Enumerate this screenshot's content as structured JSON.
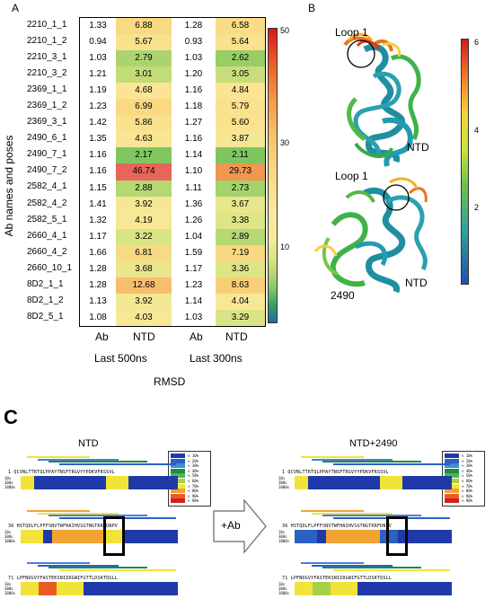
{
  "panel_a": {
    "letter": "A",
    "y_label": "Ab names and poses",
    "x_group_1": "Last 500ns",
    "x_group_2": "Last 300ns",
    "x_title": "RMSD",
    "col_headers": [
      "Ab",
      "NTD",
      "Ab",
      "NTD"
    ],
    "colorbar_ticks": [
      "50",
      "30",
      "10"
    ],
    "colorbar_range": [
      0,
      52
    ],
    "rows": [
      {
        "name": "2210_1_1",
        "v": [
          1.33,
          6.88,
          1.28,
          6.58
        ],
        "t": [
          "1.33",
          "6.88",
          "1.28",
          "6.58"
        ]
      },
      {
        "name": "2210_1_2",
        "v": [
          0.94,
          5.67,
          0.93,
          5.64
        ],
        "t": [
          "0.94",
          "5.67",
          "0.93",
          "5.64"
        ]
      },
      {
        "name": "2210_3_1",
        "v": [
          1.03,
          2.79,
          1.03,
          2.62
        ],
        "t": [
          "1.03",
          "2.79",
          "1.03",
          "2.62"
        ]
      },
      {
        "name": "2210_3_2",
        "v": [
          1.21,
          3.01,
          1.2,
          3.05
        ],
        "t": [
          "1.21",
          "3.01",
          "1.20",
          "3.05"
        ]
      },
      {
        "name": "2369_1_1",
        "v": [
          1.19,
          4.68,
          1.16,
          4.84
        ],
        "t": [
          "1.19",
          "4.68",
          "1.16",
          "4.84"
        ]
      },
      {
        "name": "2369_1_2",
        "v": [
          1.23,
          6.99,
          1.18,
          5.79
        ],
        "t": [
          "1.23",
          "6.99",
          "1.18",
          "5.79"
        ]
      },
      {
        "name": "2369_3_1",
        "v": [
          1.42,
          5.86,
          1.27,
          5.6
        ],
        "t": [
          "1.42",
          "5.86",
          "1.27",
          "5.60"
        ]
      },
      {
        "name": "2490_6_1",
        "v": [
          1.35,
          4.63,
          1.16,
          3.87
        ],
        "t": [
          "1.35",
          "4.63",
          "1.16",
          "3.87"
        ]
      },
      {
        "name": "2490_7_1",
        "v": [
          1.16,
          2.17,
          1.14,
          2.11
        ],
        "t": [
          "1.16",
          "2.17",
          "1.14",
          "2.11"
        ]
      },
      {
        "name": "2490_7_2",
        "v": [
          1.16,
          46.74,
          1.1,
          29.73
        ],
        "t": [
          "1.16",
          "46.74",
          "1.10",
          "29.73"
        ]
      },
      {
        "name": "2582_4_1",
        "v": [
          1.15,
          2.88,
          1.11,
          2.73
        ],
        "t": [
          "1.15",
          "2.88",
          "1.11",
          "2.73"
        ]
      },
      {
        "name": "2582_4_2",
        "v": [
          1.41,
          3.92,
          1.36,
          3.67
        ],
        "t": [
          "1.41",
          "3.92",
          "1.36",
          "3.67"
        ]
      },
      {
        "name": "2582_5_1",
        "v": [
          1.32,
          4.19,
          1.26,
          3.38
        ],
        "t": [
          "1.32",
          "4.19",
          "1.26",
          "3.38"
        ]
      },
      {
        "name": "2660_4_1",
        "v": [
          1.17,
          3.22,
          1.04,
          2.89
        ],
        "t": [
          "1.17",
          "3.22",
          "1.04",
          "2.89"
        ]
      },
      {
        "name": "2660_4_2",
        "v": [
          1.66,
          6.81,
          1.59,
          7.19
        ],
        "t": [
          "1.66",
          "6.81",
          "1.59",
          "7.19"
        ]
      },
      {
        "name": "2660_10_\n1",
        "v": [
          1.28,
          3.68,
          1.17,
          3.36
        ],
        "t": [
          "1.28",
          "3.68",
          "1.17",
          "3.36"
        ]
      },
      {
        "name": "8D2_1_1",
        "v": [
          1.28,
          12.68,
          1.23,
          8.63
        ],
        "t": [
          "1.28",
          "12.68",
          "1.23",
          "8.63"
        ]
      },
      {
        "name": "8D2_1_2",
        "v": [
          1.13,
          3.92,
          1.14,
          4.04
        ],
        "t": [
          "1.13",
          "3.92",
          "1.14",
          "4.04"
        ]
      },
      {
        "name": "8D2_5_1",
        "v": [
          1.08,
          4.03,
          1.03,
          3.29
        ],
        "t": [
          "1.08",
          "4.03",
          "1.03",
          "3.29"
        ]
      }
    ]
  },
  "panel_b": {
    "letter": "B",
    "top_loop": "Loop 1",
    "top_label": "NTD",
    "bottom_loop": "Loop 1",
    "bottom_label": "NTD",
    "bottom_ab": "2490",
    "colorbar_ticks": [
      "6",
      "4",
      "2"
    ]
  },
  "panel_c": {
    "letter": "C",
    "left_title": "NTD",
    "right_title": "NTD+2490",
    "arrow_label": "+Ab",
    "legend_items": [
      "< 10%",
      "< 20%",
      "< 30%",
      "< 40%",
      "< 50%",
      "< 60%",
      "< 70%",
      "< 80%",
      "< 90%",
      "< 90%"
    ],
    "legend_colors": [
      "#1f3aa8",
      "#2a62c4",
      "#3b8fd4",
      "#1c8a4a",
      "#4cb848",
      "#a6d04a",
      "#f2e33a",
      "#f3a332",
      "#ea5a25",
      "#d41f1f"
    ],
    "left_seq_rows": [
      {
        "start": "1",
        "seq": "QCVNLTTRTQLPPAYTNSFTRGVYYPDKVFRSSVL"
      },
      {
        "start": "36",
        "seq": "HSTQDLFLPFFSNVTWFHAIHVSGTNGTKRFDNPV"
      },
      {
        "start": "71",
        "seq": "LPFNDGVYFASTEKSNIIRGWIFGTTLDSKTQSLL"
      }
    ],
    "right_seq_rows": [
      {
        "start": "1",
        "seq": "QCVNLTTRTQLPPAYTNSFTRGVYYPDKVFRSSVL"
      },
      {
        "start": "36",
        "seq": "HSTQDLFLPFFSNVTWFHAIHVSGTNGTKRFDNPV"
      },
      {
        "start": "71",
        "seq": "LPFNDGVYFASTEKSNIIRGWIFGTTLDSKTQSLL"
      }
    ],
    "row_time_labels": [
      "10s",
      "300s",
      "1800s"
    ]
  }
}
